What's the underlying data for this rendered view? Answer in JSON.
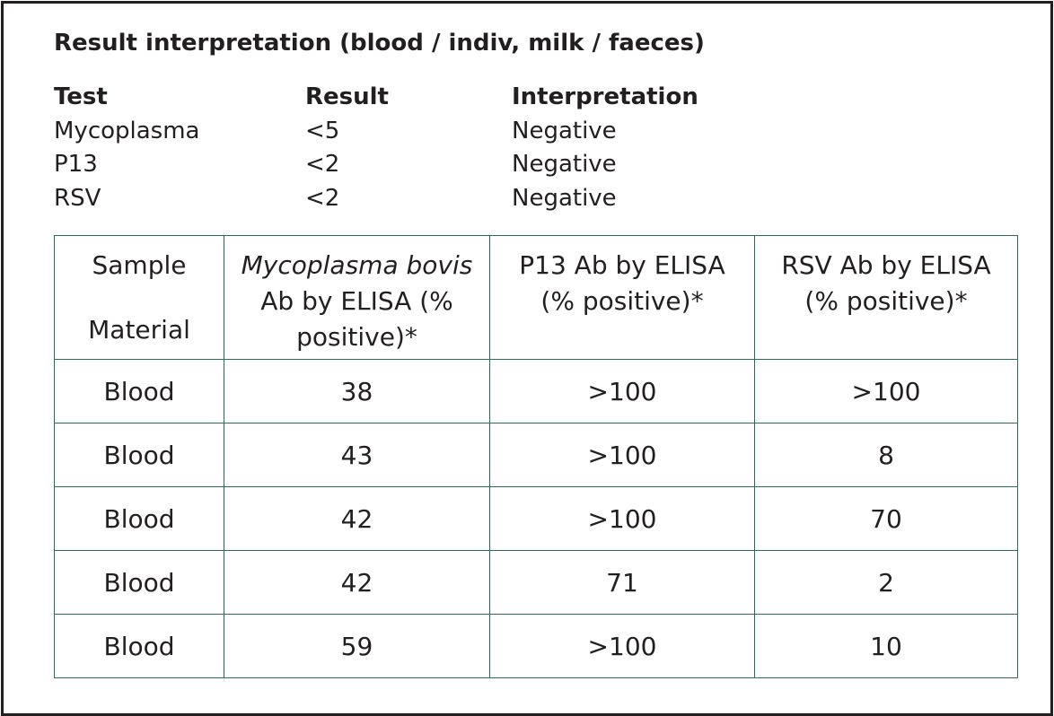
{
  "heading": "Result interpretation (blood / indiv, milk / faeces)",
  "summary": {
    "headers": [
      "Test",
      "Result",
      "Interpretation"
    ],
    "rows": [
      [
        "Mycoplasma",
        "<5",
        "Negative"
      ],
      [
        "P13",
        "<2",
        "Negative"
      ],
      [
        "RSV",
        "<2",
        "Negative"
      ]
    ]
  },
  "results": {
    "headers": {
      "sample_line1": "Sample",
      "sample_line2": "Material",
      "myco_italic": "Mycoplasma bovis",
      "myco_rest_line1": "Ab by ELISA (%",
      "myco_rest_line2": "positive)*",
      "p13_line1": "P13 Ab by ELISA",
      "p13_line2": "(% positive)*",
      "rsv_line1": "RSV Ab by ELISA",
      "rsv_line2": "(% positive)*"
    },
    "rows": [
      [
        "Blood",
        "38",
        ">100",
        ">100"
      ],
      [
        "Blood",
        "43",
        ">100",
        "8"
      ],
      [
        "Blood",
        "42",
        ">100",
        "70"
      ],
      [
        "Blood",
        "42",
        "71",
        "2"
      ],
      [
        "Blood",
        "59",
        ">100",
        "10"
      ]
    ]
  },
  "colors": {
    "text": "#231f20",
    "table_border": "#2a6b5c"
  }
}
